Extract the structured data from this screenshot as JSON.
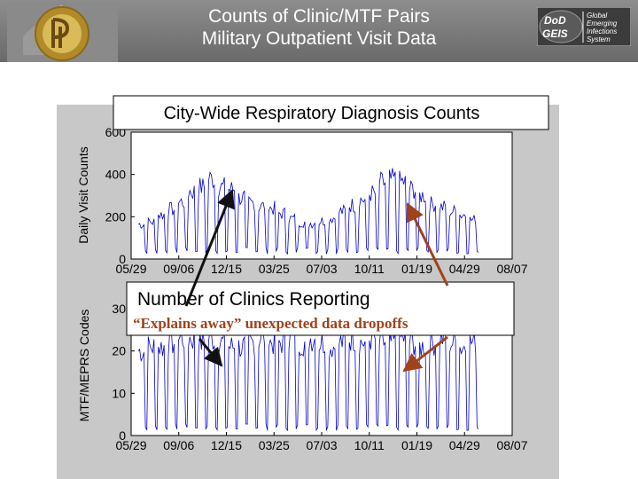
{
  "header": {
    "title_line1": "Counts of Clinic/MTF Pairs",
    "title_line2": "Military Outpatient Visit Data"
  },
  "logo": {
    "left_text": "DoD GEIS",
    "right_lines": [
      "Global",
      "Emerging",
      "Infections",
      "System"
    ]
  },
  "seal": {
    "text": "THE JOHNS HOPKINS UNIVERSITY"
  },
  "colors": {
    "series": "#0000cc",
    "arrow_black": "#111111",
    "arrow_brown": "#a0421a",
    "panel": "#c8c8c8",
    "header": "#7a7a7a"
  },
  "chart_data": [
    {
      "type": "line",
      "title": "City-Wide Respiratory Diagnosis Counts",
      "ylabel": "Daily Visit Counts",
      "xlabel": "",
      "xticks": [
        "05/29",
        "09/06",
        "12/15",
        "03/25",
        "07/03",
        "10/11",
        "01/19",
        "04/29",
        "08/07"
      ],
      "yticks": [
        0,
        200,
        400,
        600
      ],
      "ylim": [
        0,
        600
      ],
      "series": [
        {
          "values_weekly": [
            165,
            175,
            210,
            235,
            270,
            320,
            340,
            380,
            340,
            330,
            290,
            265,
            250,
            240,
            215,
            190,
            175,
            170,
            180,
            195,
            225,
            255,
            280,
            310,
            360,
            375,
            365,
            330,
            300,
            260,
            245,
            225,
            210,
            185
          ],
          "weekend_low": 40
        }
      ]
    },
    {
      "type": "line",
      "title": "Number of Clinics Reporting",
      "subtitle": "“Explains away” unexpected data dropoffs",
      "ylabel": "MTF/MEPRS Codes",
      "xlabel": "",
      "xticks": [
        "05/29",
        "09/06",
        "12/15",
        "03/25",
        "07/03",
        "10/11",
        "01/19",
        "04/29",
        "08/07"
      ],
      "yticks": [
        0,
        10,
        20,
        30
      ],
      "ylim": [
        0,
        30
      ],
      "series": [
        {
          "values_weekly": [
            20,
            21,
            21,
            22,
            23,
            23,
            22,
            23,
            22,
            21,
            21,
            22,
            23,
            22,
            22,
            23,
            22,
            23,
            22,
            21,
            22,
            23,
            22,
            23,
            22,
            22,
            23,
            22,
            21,
            22,
            23,
            22,
            21,
            22
          ],
          "weekend_low": 2
        }
      ]
    }
  ]
}
